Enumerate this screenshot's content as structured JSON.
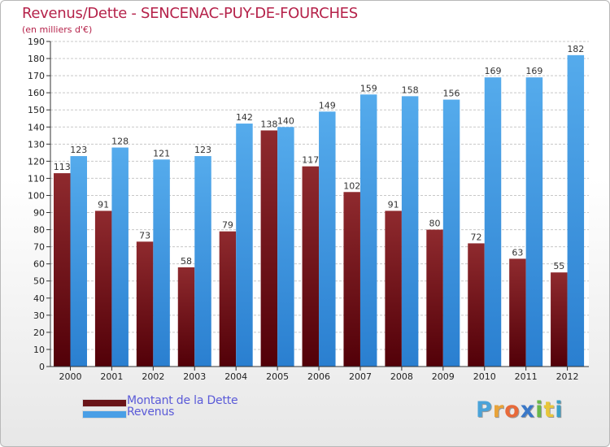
{
  "header": {
    "title": "Revenus/Dette - SENCENAC-PUY-DE-FOURCHES",
    "subtitle": "(en milliers d'€)"
  },
  "chart_data": {
    "type": "bar",
    "title": "Revenus/Dette - SENCENAC-PUY-DE-FOURCHES",
    "ylabel": "(en milliers d'€)",
    "xlabel": "",
    "categories": [
      "2000",
      "2001",
      "2002",
      "2003",
      "2004",
      "2005",
      "2006",
      "2007",
      "2008",
      "2009",
      "2010",
      "2011",
      "2012"
    ],
    "series": [
      {
        "name": "Montant de la Dette",
        "color": "#7a1c20",
        "values": [
          113,
          91,
          73,
          58,
          79,
          138,
          117,
          102,
          91,
          80,
          72,
          63,
          55
        ]
      },
      {
        "name": "Revenus",
        "color": "#4a9fe6",
        "values": [
          123,
          128,
          121,
          123,
          142,
          140,
          149,
          159,
          158,
          156,
          169,
          169,
          182
        ]
      }
    ],
    "ylim": [
      0,
      190
    ],
    "ytick_step": 10,
    "grid": true,
    "legend_position": "bottom-left"
  },
  "legend": {
    "items": [
      {
        "label": "Montant de la Dette",
        "color": "#7a1c20"
      },
      {
        "label": "Revenus",
        "color": "#4a9fe6"
      }
    ]
  },
  "logo": {
    "letters": [
      "P",
      "r",
      "o",
      "x",
      "i",
      "t",
      "i"
    ],
    "colors": [
      "#4aa3d9",
      "#e8a33a",
      "#e86a3a",
      "#3a78c8",
      "#6ab84a",
      "#e8c63a",
      "#3aa0c8"
    ]
  }
}
